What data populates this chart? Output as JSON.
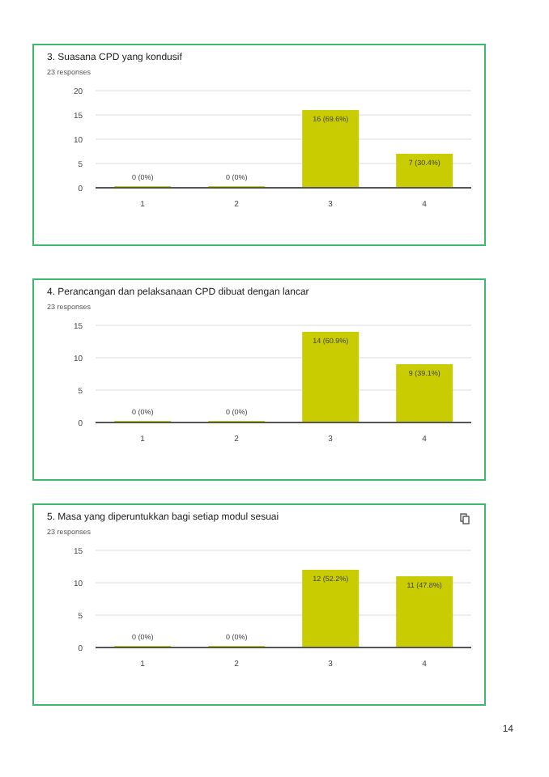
{
  "chart_data": [
    {
      "type": "bar",
      "title": "3. Suasana CPD yang kondusif",
      "subtitle": "23 responses",
      "categories": [
        "1",
        "2",
        "3",
        "4"
      ],
      "values": [
        0,
        0,
        16,
        7
      ],
      "value_labels": [
        "0 (0%)",
        "0 (0%)",
        "16 (69.6%)",
        "7 (30.4%)"
      ],
      "color": "#c8cc00",
      "ylim": [
        0,
        20
      ],
      "yticks": [
        0,
        5,
        10,
        15,
        20
      ],
      "grid": "y",
      "legend": false
    },
    {
      "type": "bar",
      "title": "4. Perancangan dan pelaksanaan CPD dibuat dengan lancar",
      "subtitle": "23 responses",
      "categories": [
        "1",
        "2",
        "3",
        "4"
      ],
      "values": [
        0,
        0,
        14,
        9
      ],
      "value_labels": [
        "0 (0%)",
        "0 (0%)",
        "14 (60.9%)",
        "9 (39.1%)"
      ],
      "color": "#c8cc00",
      "ylim": [
        0,
        15
      ],
      "yticks": [
        0,
        5,
        10,
        15
      ],
      "grid": "y",
      "legend": false
    },
    {
      "type": "bar",
      "title": "5. Masa yang diperuntukkan bagi setiap modul sesuai",
      "subtitle": "23 responses",
      "categories": [
        "1",
        "2",
        "3",
        "4"
      ],
      "values": [
        0,
        0,
        12,
        11
      ],
      "value_labels": [
        "0 (0%)",
        "0 (0%)",
        "12 (52.2%)",
        "11 (47.8%)"
      ],
      "color": "#c8cc00",
      "ylim": [
        0,
        15
      ],
      "yticks": [
        0,
        5,
        10,
        15
      ],
      "grid": "y",
      "legend": false,
      "annotations": [
        "14"
      ]
    }
  ]
}
